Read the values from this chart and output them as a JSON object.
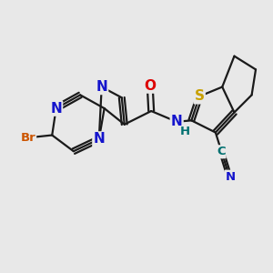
{
  "bg_color": "#e8e8e8",
  "bond_color": "#1a1a1a",
  "bond_width": 1.6,
  "atom_colors": {
    "N": "#1414cc",
    "O": "#dd0000",
    "S": "#c8a000",
    "Br": "#cc5500",
    "C_cn": "#007070",
    "H": "#007070"
  },
  "font_size_large": 11,
  "font_size_small": 9.5
}
